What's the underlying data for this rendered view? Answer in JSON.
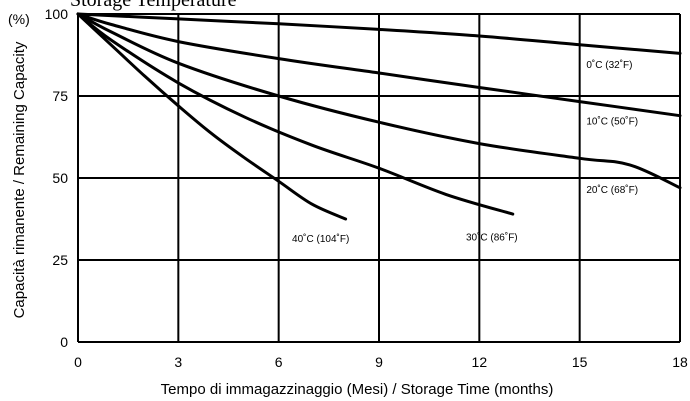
{
  "header_fragment": "Storage Temperature ",
  "chart_data": {
    "type": "line",
    "title": "",
    "xlabel": "Tempo di immagazzinaggio (Mesi) / Storage Time (months)",
    "ylabel": "Capacità rimanente / Remaining Capacity",
    "yunit_label": "(%)",
    "xlim": [
      0,
      18
    ],
    "ylim": [
      0,
      100
    ],
    "xticks": [
      0,
      3,
      6,
      9,
      12,
      15,
      18
    ],
    "yticks": [
      0,
      25,
      50,
      75,
      100
    ],
    "grid": true,
    "series": [
      {
        "name": "0˚C (32˚F)",
        "points": [
          [
            0,
            100
          ],
          [
            3,
            98.5
          ],
          [
            6,
            97
          ],
          [
            9,
            95.3
          ],
          [
            12,
            93.3
          ],
          [
            15,
            90.6
          ],
          [
            18,
            88
          ]
        ]
      },
      {
        "name": "10˚C (50˚F)",
        "points": [
          [
            0,
            100
          ],
          [
            1,
            96.8
          ],
          [
            3,
            91.6
          ],
          [
            6,
            86.4
          ],
          [
            9,
            82
          ],
          [
            12,
            77.6
          ],
          [
            15,
            73.3
          ],
          [
            18,
            69
          ]
        ]
      },
      {
        "name": "20˚C (68˚F)",
        "points": [
          [
            0,
            100
          ],
          [
            1,
            94.5
          ],
          [
            3,
            85
          ],
          [
            6,
            75
          ],
          [
            9,
            67
          ],
          [
            12,
            60.5
          ],
          [
            15,
            56
          ],
          [
            16.5,
            54
          ],
          [
            18,
            47
          ]
        ]
      },
      {
        "name": "30˚C (86˚F)",
        "points": [
          [
            0,
            100
          ],
          [
            1,
            92
          ],
          [
            3,
            79
          ],
          [
            5,
            68.5
          ],
          [
            7,
            60
          ],
          [
            9,
            53
          ],
          [
            11,
            45
          ],
          [
            13,
            39
          ]
        ]
      },
      {
        "name": "40˚C (104˚F)",
        "points": [
          [
            0,
            100
          ],
          [
            1,
            90.5
          ],
          [
            2,
            81
          ],
          [
            3,
            72
          ],
          [
            4,
            63.5
          ],
          [
            5,
            56
          ],
          [
            6,
            49
          ],
          [
            7,
            42
          ],
          [
            8,
            37.5
          ]
        ]
      }
    ],
    "series_label_placement": [
      {
        "x": 15.2,
        "y": 83.5
      },
      {
        "x": 15.2,
        "y": 66.3
      },
      {
        "x": 15.2,
        "y": 45.5
      },
      {
        "x": 11.6,
        "y": 31.0
      },
      {
        "x": 6.4,
        "y": 30.5
      }
    ]
  }
}
